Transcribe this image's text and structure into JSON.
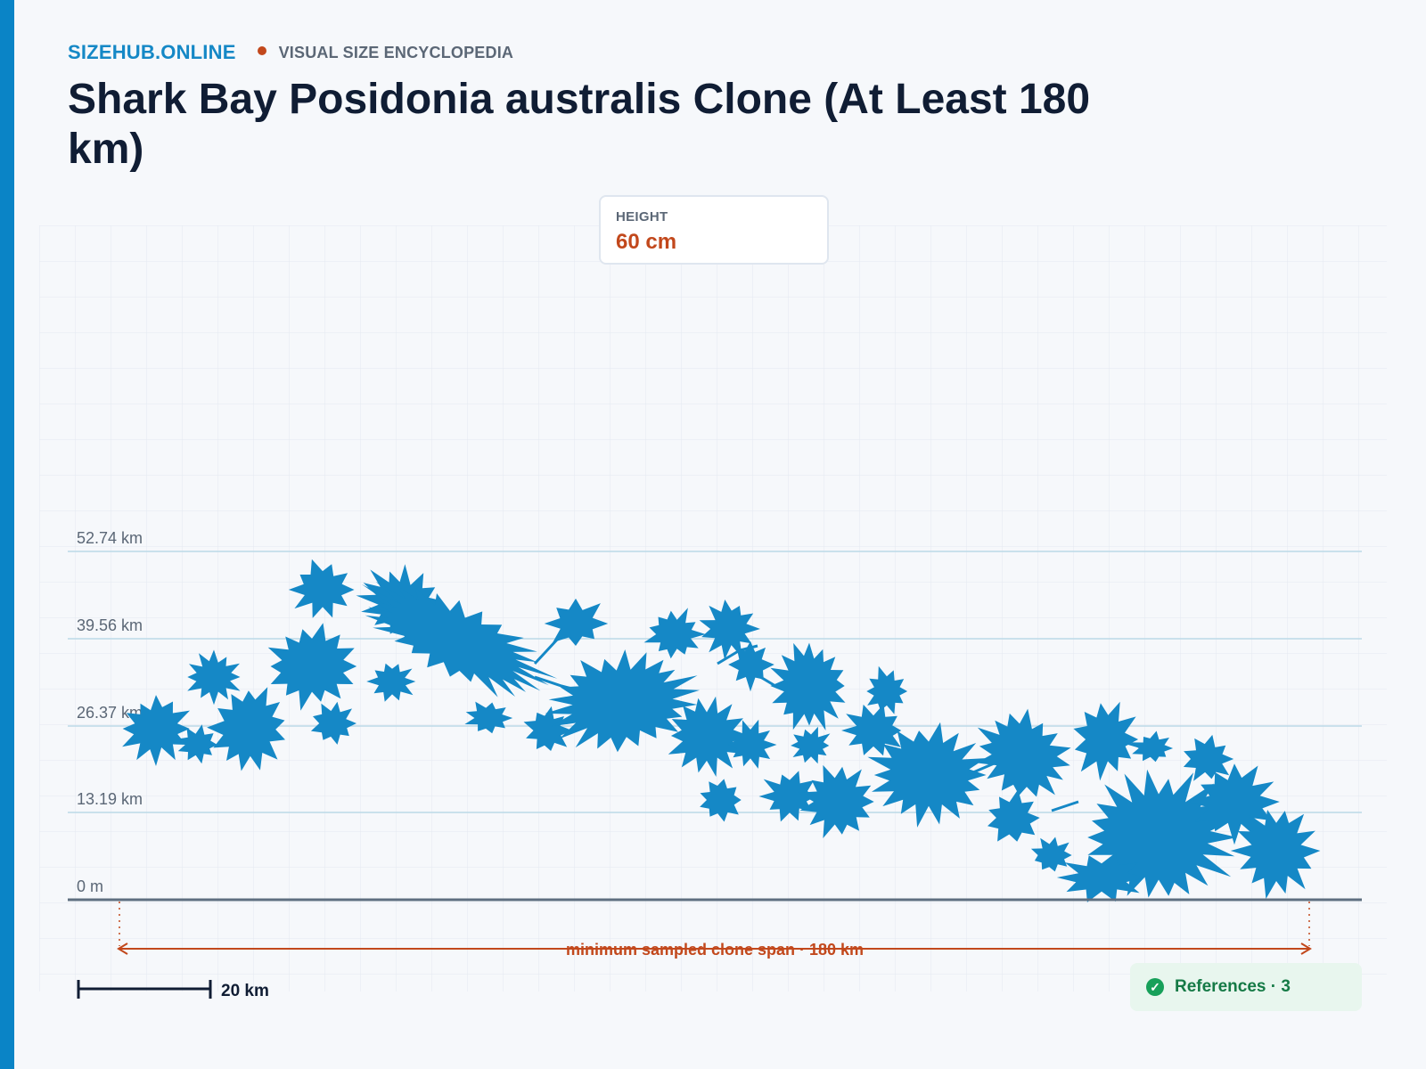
{
  "header": {
    "brand": "SIZEHUB.ONLINE",
    "tagline": "VISUAL SIZE ENCYCLOPEDIA",
    "title": "Shark Bay Posidonia australis Clone (At Least 180 km)"
  },
  "height_card": {
    "label": "HEIGHT",
    "value": "60 cm"
  },
  "scale_lines": [
    "52.74 km",
    "39.56 km",
    "26.37 km",
    "13.19 km",
    "0 m"
  ],
  "span_label": "minimum sampled clone span · 180 km",
  "scale_bar_label": "20 km",
  "references": {
    "label": "References · 3",
    "icon": "check-circle-icon"
  },
  "colors": {
    "accent": "#0a84c6",
    "plant": "#1588c6",
    "highlight": "#c2481c",
    "success": "#17a05a"
  }
}
